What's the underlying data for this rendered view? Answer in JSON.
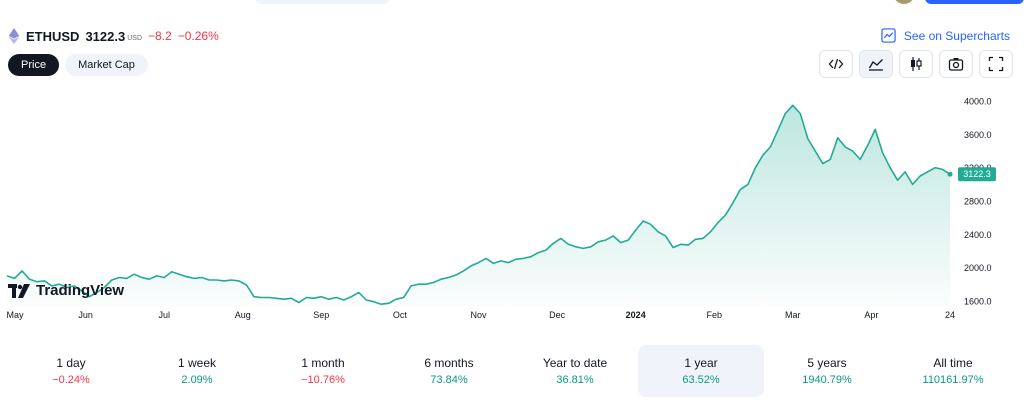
{
  "header": {
    "symbol": "ETHUSD",
    "price": "3122.3",
    "currency": "USD",
    "change": "−8.2",
    "change_pct": "−0.26%",
    "supercharts_label": "See on Supercharts"
  },
  "tabs": [
    {
      "label": "Price",
      "active": true
    },
    {
      "label": "Market Cap",
      "active": false
    }
  ],
  "toolbar": {
    "icons": [
      "embed-code-icon",
      "area-chart-icon",
      "candlestick-icon",
      "camera-icon",
      "fullscreen-icon"
    ]
  },
  "logo": {
    "text": "TradingView"
  },
  "colors": {
    "line": "#22ab94",
    "positive": "#089981",
    "negative": "#f23645",
    "accent": "#2962ff"
  },
  "chart_data": {
    "type": "area",
    "series": [
      {
        "last_value": 3122.3,
        "values": [
          1900,
          1870,
          1960,
          1860,
          1830,
          1840,
          1780,
          1800,
          1760,
          1780,
          1720,
          1650,
          1700,
          1760,
          1850,
          1880,
          1870,
          1920,
          1880,
          1860,
          1900,
          1880,
          1950,
          1920,
          1890,
          1870,
          1880,
          1850,
          1850,
          1840,
          1850,
          1840,
          1790,
          1650,
          1640,
          1640,
          1630,
          1620,
          1630,
          1580,
          1640,
          1630,
          1650,
          1620,
          1640,
          1610,
          1650,
          1700,
          1610,
          1590,
          1560,
          1570,
          1620,
          1640,
          1780,
          1800,
          1800,
          1820,
          1860,
          1880,
          1910,
          1960,
          2020,
          2060,
          2110,
          2050,
          2080,
          2060,
          2100,
          2110,
          2130,
          2180,
          2210,
          2290,
          2350,
          2280,
          2250,
          2230,
          2250,
          2310,
          2330,
          2380,
          2300,
          2330,
          2450,
          2560,
          2520,
          2430,
          2380,
          2240,
          2280,
          2270,
          2340,
          2350,
          2430,
          2540,
          2630,
          2780,
          2940,
          3000,
          3200,
          3350,
          3450,
          3650,
          3850,
          3950,
          3850,
          3550,
          3400,
          3250,
          3300,
          3560,
          3450,
          3400,
          3300,
          3470,
          3660,
          3380,
          3200,
          3050,
          3150,
          3000,
          3100,
          3150,
          3200,
          3180,
          3122.3
        ]
      }
    ],
    "x_tick_labels": [
      "May",
      "Jun",
      "Jul",
      "Aug",
      "Sep",
      "Oct",
      "Nov",
      "Dec",
      "2024",
      "Feb",
      "Mar",
      "Apr",
      "24"
    ],
    "y_tick_labels": [
      "4000.0",
      "3600.0",
      "3200.0",
      "2800.0",
      "2400.0",
      "2000.0",
      "1600.0"
    ],
    "ylim": [
      1550,
      4050
    ],
    "grid": false,
    "legend": "none"
  },
  "periods": [
    {
      "label": "1 day",
      "value": "−0.24%",
      "trend": "neg",
      "selected": false
    },
    {
      "label": "1 week",
      "value": "2.09%",
      "trend": "pos",
      "selected": false
    },
    {
      "label": "1 month",
      "value": "−10.76%",
      "trend": "neg",
      "selected": false
    },
    {
      "label": "6 months",
      "value": "73.84%",
      "trend": "pos",
      "selected": false
    },
    {
      "label": "Year to date",
      "value": "36.81%",
      "trend": "pos",
      "selected": false
    },
    {
      "label": "1 year",
      "value": "63.52%",
      "trend": "pos",
      "selected": true
    },
    {
      "label": "5 years",
      "value": "1940.79%",
      "trend": "pos",
      "selected": false
    },
    {
      "label": "All time",
      "value": "110161.97%",
      "trend": "pos",
      "selected": false
    }
  ]
}
